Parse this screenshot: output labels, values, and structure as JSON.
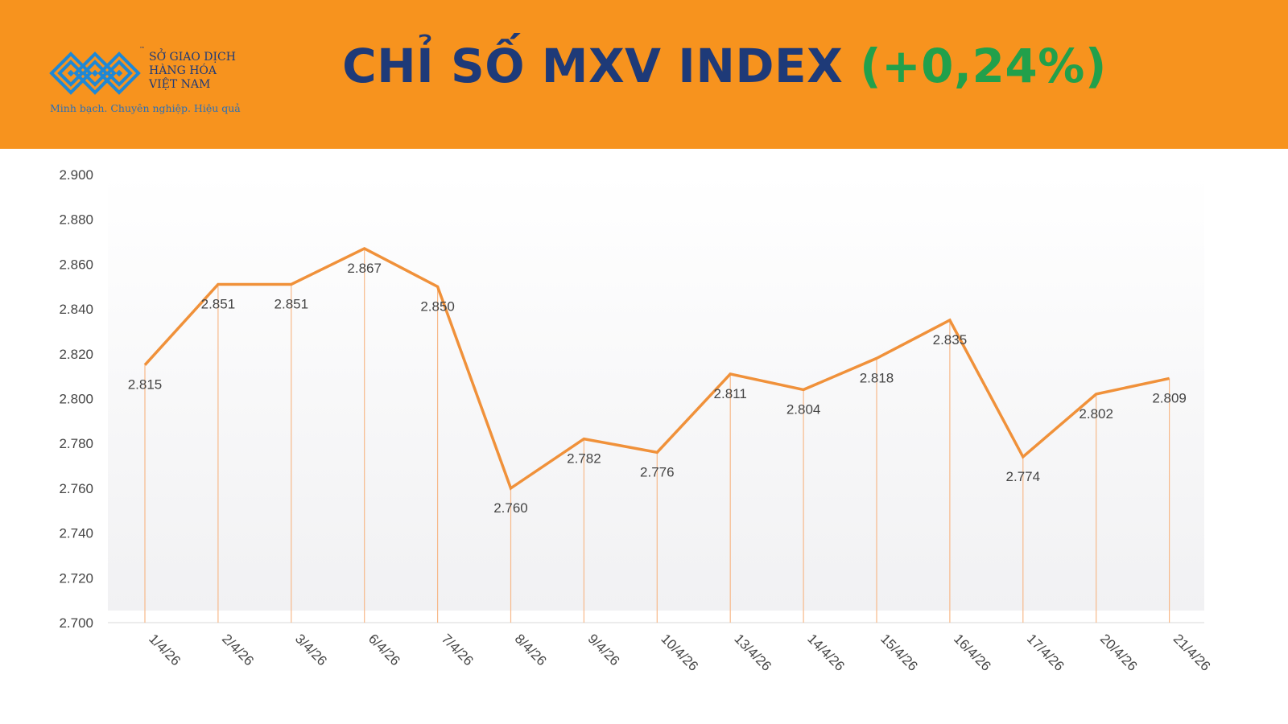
{
  "header": {
    "logo": {
      "icon": "mxv-logo-icon",
      "org_line1": "SỞ GIAO DỊCH",
      "org_line2": "HÀNG HÓA",
      "org_line3": "VIỆT NAM",
      "tagline": "Minh bạch. Chuyên nghiệp. Hiệu quả",
      "trademark": "™"
    },
    "title_main": "CHỈ SỐ MXV INDEX",
    "title_change": "(+0,24%)",
    "colors": {
      "background": "#F7931E",
      "title": "#1E3A78",
      "change": "#22A04B"
    }
  },
  "chart_data": {
    "type": "line",
    "title": "",
    "xlabel": "",
    "ylabel": "",
    "categories": [
      "1/4/26",
      "2/4/26",
      "3/4/26",
      "6/4/26",
      "7/4/26",
      "8/4/26",
      "9/4/26",
      "10/4/26",
      "13/4/26",
      "14/4/26",
      "15/4/26",
      "16/4/26",
      "17/4/26",
      "20/4/26",
      "21/4/26"
    ],
    "values": [
      2815,
      2851,
      2851,
      2867,
      2850,
      2760,
      2782,
      2776,
      2811,
      2804,
      2818,
      2835,
      2774,
      2802,
      2809
    ],
    "value_labels": [
      "2.815",
      "2.851",
      "2.851",
      "2.867",
      "2.850",
      "2.760",
      "2.782",
      "2.776",
      "2.811",
      "2.804",
      "2.818",
      "2.835",
      "2.774",
      "2.802",
      "2.809"
    ],
    "ylim": [
      2700,
      2900
    ],
    "yticks": [
      2700,
      2720,
      2740,
      2760,
      2780,
      2800,
      2820,
      2840,
      2860,
      2880,
      2900
    ],
    "ytick_labels": [
      "2.700",
      "2.720",
      "2.740",
      "2.760",
      "2.780",
      "2.800",
      "2.820",
      "2.840",
      "2.860",
      "2.880",
      "2.900"
    ],
    "drop_lines": true,
    "grid": false,
    "line_color": "#F0913A",
    "drop_line_color": "#F7B98A"
  }
}
